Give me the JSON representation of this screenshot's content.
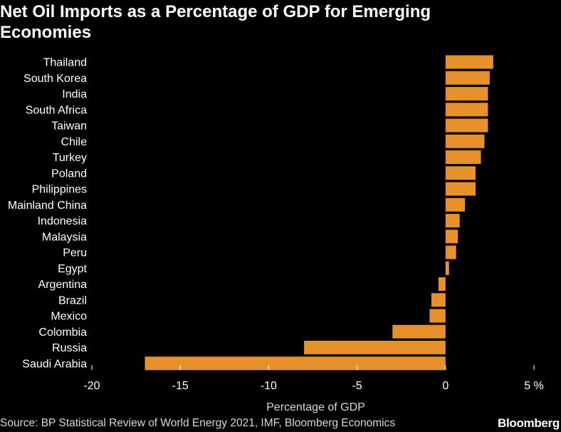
{
  "chart_data": {
    "type": "bar",
    "orientation": "horizontal",
    "title": "Net Oil Imports as a Percentage of GDP for Emerging Economies",
    "xlabel": "Percentage of GDP",
    "ylabel": "",
    "xlim": [
      -20,
      5
    ],
    "x_ticks": [
      {
        "value": -20,
        "label": "-20"
      },
      {
        "value": -15,
        "label": "-15"
      },
      {
        "value": -10,
        "label": "-10"
      },
      {
        "value": -5,
        "label": "-5"
      },
      {
        "value": 0,
        "label": "0"
      },
      {
        "value": 5,
        "label": "5 %"
      }
    ],
    "categories": [
      "Thailand",
      "South Korea",
      "India",
      "South Africa",
      "Taiwan",
      "Chile",
      "Turkey",
      "Poland",
      "Philippines",
      "Mainland China",
      "Indonesia",
      "Malaysia",
      "Peru",
      "Egypt",
      "Argentina",
      "Brazil",
      "Mexico",
      "Colombia",
      "Russia",
      "Saudi Arabia"
    ],
    "values": [
      2.7,
      2.5,
      2.4,
      2.4,
      2.4,
      2.2,
      2.0,
      1.7,
      1.7,
      1.1,
      0.8,
      0.7,
      0.6,
      0.2,
      -0.4,
      -0.8,
      -0.9,
      -3.0,
      -8.0,
      -17.0
    ],
    "grid": false
  },
  "colors": {
    "background": "#000000",
    "bar": "#e8912a",
    "text": "#ffffff",
    "muted_text": "#d8d8d8",
    "axis": "#ffffff"
  },
  "header": {
    "title": "Net Oil Imports as a Percentage of GDP for Emerging Economies"
  },
  "footer": {
    "source": "Source: BP Statistical Review of World Energy 2021, IMF, Bloomberg Economics",
    "brand": "Bloomberg"
  }
}
